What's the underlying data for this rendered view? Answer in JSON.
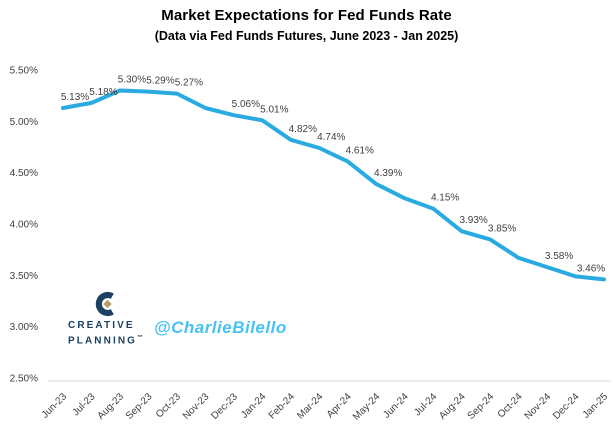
{
  "header": {
    "title": "Market Expectations for Fed Funds Rate",
    "subtitle": "(Data via Fed Funds Futures, June 2023 - Jan 2025)"
  },
  "branding": {
    "logo_line1": "CREATIVE",
    "logo_line2": "PLANNING",
    "trademark": "™",
    "watermark": "@CharlieBilello",
    "logo_navy": "#1a4163",
    "logo_gold": "#ba9c64",
    "watermark_color": "#47c2f3"
  },
  "chart_data": {
    "type": "line",
    "title": "Market Expectations for Fed Funds Rate",
    "subtitle": "(Data via Fed Funds Futures, June 2023 - Jan 2025)",
    "x": [
      "Jun-23",
      "Jul-23",
      "Aug-23",
      "Sep-23",
      "Oct-23",
      "Nov-23",
      "Dec-23",
      "Jan-24",
      "Feb-24",
      "Mar-24",
      "Apr-24",
      "May-24",
      "Jun-24",
      "Jul-24",
      "Aug-24",
      "Sep-24",
      "Oct-24",
      "Nov-24",
      "Dec-24",
      "Jan-25"
    ],
    "values": [
      5.13,
      5.18,
      5.3,
      5.29,
      5.27,
      5.13,
      5.06,
      5.01,
      4.82,
      4.74,
      4.61,
      4.39,
      4.25,
      4.15,
      3.93,
      3.85,
      3.67,
      3.58,
      3.49,
      3.46
    ],
    "point_labels": [
      "5.13%",
      "5.18%",
      "5.30%",
      "5.29%",
      "5.27%",
      null,
      "5.06%",
      "5.01%",
      "4.82%",
      "4.74%",
      "4.61%",
      "4.39%",
      null,
      "4.15%",
      "3.93%",
      "3.85%",
      null,
      "3.58%",
      null,
      "3.46%"
    ],
    "yticks": [
      {
        "value": 5.5,
        "label": "5.50%"
      },
      {
        "value": 5.0,
        "label": "5.00%"
      },
      {
        "value": 4.5,
        "label": "4.50%"
      },
      {
        "value": 4.0,
        "label": "4.00%"
      },
      {
        "value": 3.5,
        "label": "3.50%"
      },
      {
        "value": 3.0,
        "label": "3.00%"
      },
      {
        "value": 2.5,
        "label": "2.50%"
      }
    ],
    "ylim": [
      2.5,
      5.5
    ],
    "xlabel": "",
    "ylabel": "",
    "grid": false,
    "legend": false,
    "line_color": "#29abe2",
    "axis_line_color": "#d9d9d9",
    "tick_label_color": "#3f3f3f",
    "data_label_color": "#3f3f3f"
  }
}
